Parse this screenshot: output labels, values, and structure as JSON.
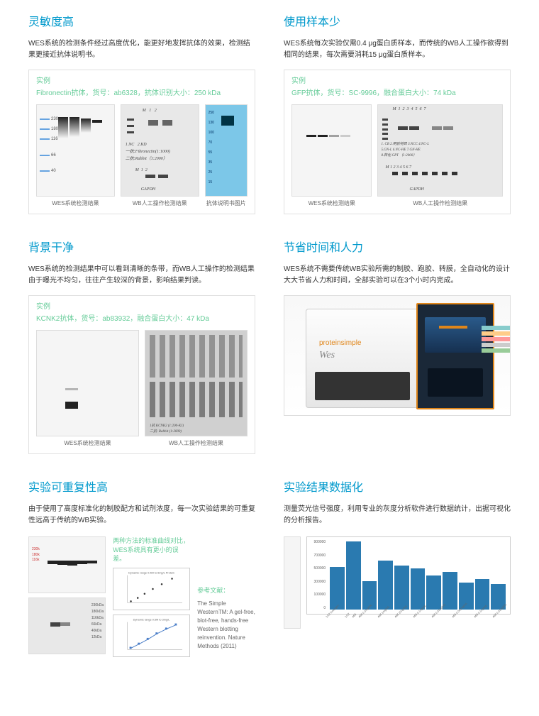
{
  "s1": {
    "title": "灵敏度高",
    "desc": "WES系统的检测条件经过高度优化，能更好地发挥抗体的效果，检测结果更接近抗体说明书。",
    "ex_label": "实例",
    "ex_sub": "Fibronectin抗体，货号：ab6328，抗体识别大小：250 kDa",
    "cap1": "WES系统检测结果",
    "cap2": "WB人工操作检测结果",
    "cap3": "抗体说明书图片",
    "markers": [
      "230",
      "180",
      "116",
      "66",
      "40"
    ],
    "blue_markers": [
      "250",
      "130",
      "100",
      "70",
      "55",
      "35",
      "25",
      "15"
    ]
  },
  "s2": {
    "title": "使用样本少",
    "desc": "WES系统每次实验仅需0.4 μg蛋白质样本，而传统的WB人工操作欲得到相同的结果，每次需要消耗15 μg蛋白质样本。",
    "ex_label": "实例",
    "ex_sub": "GFP抗体，货号：SC-9996，融合蛋白大小：74 kDa",
    "cap1": "WES系统检测结果",
    "cap2": "WB人工操作检测结果",
    "notes": [
      "1. CB  2.明验特异  3.NCC  4.NC-L",
      "5.GN-L  6.NC-HE  7.GN-HE",
      "8.转化  GPT  （1:2000）",
      "M  1  2  3  4  5  6  7",
      "GAPDH"
    ]
  },
  "s3": {
    "title": "背景干净",
    "desc": "WES系统的检测结果中可以看到清晰的条带，而WB人工操作的检测结果由于曝光不均匀，往往产生较深的背景，影响结果判读。",
    "ex_label": "实例",
    "ex_sub": "KCNK2抗体，货号：ab83932，融合蛋白大小：47 kDa",
    "cap1": "WES系统检测结果",
    "cap2": "WB人工操作检测结果"
  },
  "s4": {
    "title": "节省时间和人力",
    "desc": "WES系统不需要传统WB实验所需的制胶、跑胶、转膜，全自动化的设计大大节省人力和时间，全部实验可以在3个小时内完成。",
    "logo1": "proteinsimple",
    "logo2": "Wes"
  },
  "s5": {
    "title": "实验可重复性高",
    "desc": "由于使用了高度标准化的制胶配方和试剂浓度，每一次实验结果的可重复性远高于传统的WB实验。",
    "note": "两种方法的标准曲线对比，WES系统具有更小的误差。",
    "ref_label": "参考文献：",
    "ref_text": "The Simple WesternTM: A gel-free, blot-free, hands-free Western blotting reinvention. Nature Methods (2011)",
    "lbl_a": "a",
    "lbl_b": "b",
    "scatter_title1": "Dynamic range 0.5M to 6mg/L Protein",
    "scatter_title2": "Dynamic range 0.5M to 3mg/L",
    "mk": [
      "230kDa",
      "180kDa",
      "116kDa",
      "66kDa",
      "40kDa",
      "12kDa"
    ]
  },
  "s6": {
    "title": "实验结果数据化",
    "desc": "测量荧光信号强度，利用专业的灰度分析软件进行数据统计，出据可视化的分析报告。",
    "bars": [
      62,
      100,
      42,
      72,
      65,
      60,
      50,
      55,
      40,
      45,
      38
    ],
    "bar_color": "#2a7ab0",
    "yticks": [
      "900000",
      "800000",
      "700000",
      "600000",
      "500000",
      "400000",
      "300000",
      "200000",
      "100000",
      "0"
    ],
    "ylabel": "Peak area",
    "xlabels": [
      "1/12 Amurgen",
      "1/12",
      "468",
      "468 0.1mg/mL",
      "468 1mg/mL",
      "468 10ng/mL",
      "468 0.1ng/mL",
      "468 0.01ng/mL",
      "468 0.001ng/mL",
      "468 0.1ng/mL",
      "468 0.01ng/mL"
    ]
  }
}
